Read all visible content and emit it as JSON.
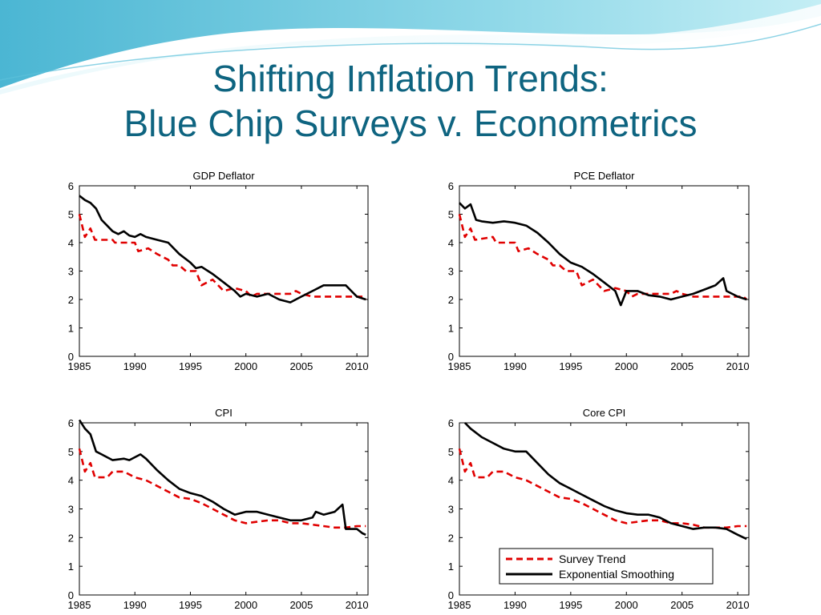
{
  "slide": {
    "title_line1": "Shifting Inflation Trends:",
    "title_line2": "Blue Chip Surveys v. Econometrics",
    "title_color": "#0e6480"
  },
  "legend": {
    "survey_label": "Survey Trend",
    "smoothing_label": "Exponential Smoothing",
    "survey_color": "#e00000",
    "smoothing_color": "#000000"
  },
  "chart_data": [
    {
      "type": "line",
      "title": "GDP Deflator",
      "xlim": [
        1985,
        2011
      ],
      "ylim": [
        0,
        6
      ],
      "xticks": [
        1985,
        1990,
        1995,
        2000,
        2005,
        2010
      ],
      "yticks": [
        0,
        1,
        2,
        3,
        4,
        5,
        6
      ],
      "series": [
        {
          "name": "Survey Trend",
          "style": "dashed",
          "color": "#e00000",
          "points": [
            [
              1985,
              5.0
            ],
            [
              1985.5,
              4.2
            ],
            [
              1986,
              4.5
            ],
            [
              1986.4,
              4.1
            ],
            [
              1988,
              4.1
            ],
            [
              1988.2,
              4.0
            ],
            [
              1990,
              4.0
            ],
            [
              1990.3,
              3.7
            ],
            [
              1991.2,
              3.8
            ],
            [
              1992,
              3.6
            ],
            [
              1993,
              3.4
            ],
            [
              1993.4,
              3.2
            ],
            [
              1994,
              3.2
            ],
            [
              1994.6,
              3.0
            ],
            [
              1995.5,
              3.0
            ],
            [
              1996,
              2.5
            ],
            [
              1997,
              2.7
            ],
            [
              1998,
              2.3
            ],
            [
              1999,
              2.4
            ],
            [
              2000,
              2.3
            ],
            [
              2000.5,
              2.1
            ],
            [
              2001,
              2.2
            ],
            [
              2004,
              2.2
            ],
            [
              2004.5,
              2.3
            ],
            [
              2005,
              2.2
            ],
            [
              2006,
              2.1
            ],
            [
              2010.5,
              2.1
            ],
            [
              2010.8,
              2.0
            ]
          ]
        },
        {
          "name": "Exponential Smoothing",
          "style": "solid",
          "color": "#000000",
          "points": [
            [
              1985,
              5.65
            ],
            [
              1985.5,
              5.5
            ],
            [
              1986,
              5.4
            ],
            [
              1986.5,
              5.2
            ],
            [
              1987,
              4.8
            ],
            [
              1987.5,
              4.6
            ],
            [
              1988,
              4.4
            ],
            [
              1988.5,
              4.3
            ],
            [
              1989,
              4.4
            ],
            [
              1989.5,
              4.25
            ],
            [
              1990,
              4.2
            ],
            [
              1990.5,
              4.3
            ],
            [
              1991,
              4.2
            ],
            [
              1992,
              4.1
            ],
            [
              1992.5,
              4.05
            ],
            [
              1993,
              4.0
            ],
            [
              1994,
              3.6
            ],
            [
              1995,
              3.3
            ],
            [
              1995.5,
              3.1
            ],
            [
              1996,
              3.15
            ],
            [
              1997,
              2.9
            ],
            [
              1998,
              2.6
            ],
            [
              1999,
              2.3
            ],
            [
              1999.5,
              2.1
            ],
            [
              2000,
              2.2
            ],
            [
              2001,
              2.1
            ],
            [
              2002,
              2.2
            ],
            [
              2003,
              2.0
            ],
            [
              2004,
              1.9
            ],
            [
              2005,
              2.1
            ],
            [
              2006,
              2.3
            ],
            [
              2007,
              2.5
            ],
            [
              2008,
              2.5
            ],
            [
              2009,
              2.5
            ],
            [
              2009.5,
              2.3
            ],
            [
              2010,
              2.1
            ],
            [
              2010.8,
              2.0
            ]
          ]
        }
      ]
    },
    {
      "type": "line",
      "title": "PCE Deflator",
      "xlim": [
        1985,
        2011
      ],
      "ylim": [
        0,
        6
      ],
      "xticks": [
        1985,
        1990,
        1995,
        2000,
        2005,
        2010
      ],
      "yticks": [
        0,
        1,
        2,
        3,
        4,
        5,
        6
      ],
      "series": [
        {
          "name": "Survey Trend",
          "style": "dashed",
          "color": "#e00000",
          "points": [
            [
              1985,
              5.0
            ],
            [
              1985.5,
              4.2
            ],
            [
              1986,
              4.5
            ],
            [
              1986.4,
              4.1
            ],
            [
              1988,
              4.2
            ],
            [
              1988.3,
              4.0
            ],
            [
              1990,
              4.0
            ],
            [
              1990.3,
              3.7
            ],
            [
              1991.2,
              3.8
            ],
            [
              1992,
              3.6
            ],
            [
              1993,
              3.4
            ],
            [
              1993.4,
              3.2
            ],
            [
              1994,
              3.2
            ],
            [
              1994.6,
              3.0
            ],
            [
              1995.5,
              3.0
            ],
            [
              1996,
              2.5
            ],
            [
              1997,
              2.7
            ],
            [
              1998,
              2.3
            ],
            [
              1999,
              2.4
            ],
            [
              2000,
              2.3
            ],
            [
              2000.5,
              2.1
            ],
            [
              2001,
              2.2
            ],
            [
              2004,
              2.2
            ],
            [
              2004.5,
              2.3
            ],
            [
              2005,
              2.2
            ],
            [
              2006,
              2.1
            ],
            [
              2010.5,
              2.1
            ],
            [
              2010.8,
              2.0
            ]
          ]
        },
        {
          "name": "Exponential Smoothing",
          "style": "solid",
          "color": "#000000",
          "points": [
            [
              1985,
              5.4
            ],
            [
              1985.5,
              5.2
            ],
            [
              1986,
              5.35
            ],
            [
              1986.5,
              4.8
            ],
            [
              1987,
              4.75
            ],
            [
              1988,
              4.7
            ],
            [
              1989,
              4.75
            ],
            [
              1990,
              4.7
            ],
            [
              1991,
              4.6
            ],
            [
              1992,
              4.35
            ],
            [
              1993,
              4.0
            ],
            [
              1994,
              3.6
            ],
            [
              1995,
              3.3
            ],
            [
              1996,
              3.15
            ],
            [
              1997,
              2.9
            ],
            [
              1998,
              2.6
            ],
            [
              1999,
              2.3
            ],
            [
              1999.5,
              1.8
            ],
            [
              2000,
              2.3
            ],
            [
              2001,
              2.3
            ],
            [
              2002,
              2.15
            ],
            [
              2003,
              2.1
            ],
            [
              2004,
              2.0
            ],
            [
              2005,
              2.1
            ],
            [
              2006,
              2.2
            ],
            [
              2007,
              2.35
            ],
            [
              2008,
              2.5
            ],
            [
              2008.7,
              2.75
            ],
            [
              2009,
              2.3
            ],
            [
              2010,
              2.1
            ],
            [
              2010.8,
              2.0
            ]
          ]
        }
      ]
    },
    {
      "type": "line",
      "title": "CPI",
      "xlim": [
        1985,
        2011
      ],
      "ylim": [
        0,
        6
      ],
      "xticks": [
        1985,
        1990,
        1995,
        2000,
        2005,
        2010
      ],
      "yticks": [
        0,
        1,
        2,
        3,
        4,
        5,
        6
      ],
      "series": [
        {
          "name": "Survey Trend",
          "style": "dashed",
          "color": "#e00000",
          "points": [
            [
              1985,
              5.1
            ],
            [
              1985.5,
              4.3
            ],
            [
              1986,
              4.6
            ],
            [
              1986.4,
              4.1
            ],
            [
              1987.5,
              4.1
            ],
            [
              1988,
              4.3
            ],
            [
              1989,
              4.3
            ],
            [
              1990,
              4.1
            ],
            [
              1991,
              4.0
            ],
            [
              1992,
              3.8
            ],
            [
              1993,
              3.6
            ],
            [
              1994,
              3.4
            ],
            [
              1995,
              3.35
            ],
            [
              1996,
              3.2
            ],
            [
              1997,
              3.0
            ],
            [
              1998,
              2.8
            ],
            [
              1999,
              2.6
            ],
            [
              2000,
              2.5
            ],
            [
              2001,
              2.55
            ],
            [
              2002,
              2.6
            ],
            [
              2003,
              2.6
            ],
            [
              2004,
              2.5
            ],
            [
              2005,
              2.5
            ],
            [
              2006,
              2.45
            ],
            [
              2007,
              2.4
            ],
            [
              2008,
              2.35
            ],
            [
              2009,
              2.35
            ],
            [
              2010,
              2.4
            ],
            [
              2010.8,
              2.4
            ]
          ]
        },
        {
          "name": "Exponential Smoothing",
          "style": "solid",
          "color": "#000000",
          "points": [
            [
              1985,
              6.1
            ],
            [
              1985.5,
              5.8
            ],
            [
              1986,
              5.6
            ],
            [
              1986.5,
              5.0
            ],
            [
              1987,
              4.9
            ],
            [
              1988,
              4.7
            ],
            [
              1989,
              4.75
            ],
            [
              1989.5,
              4.7
            ],
            [
              1990,
              4.8
            ],
            [
              1990.5,
              4.9
            ],
            [
              1991,
              4.75
            ],
            [
              1992,
              4.35
            ],
            [
              1993,
              4.0
            ],
            [
              1994,
              3.7
            ],
            [
              1995,
              3.55
            ],
            [
              1996,
              3.45
            ],
            [
              1997,
              3.25
            ],
            [
              1998,
              3.0
            ],
            [
              1999,
              2.8
            ],
            [
              2000,
              2.9
            ],
            [
              2001,
              2.9
            ],
            [
              2002,
              2.8
            ],
            [
              2003,
              2.7
            ],
            [
              2004,
              2.6
            ],
            [
              2005,
              2.6
            ],
            [
              2006,
              2.7
            ],
            [
              2006.3,
              2.9
            ],
            [
              2007,
              2.8
            ],
            [
              2008,
              2.9
            ],
            [
              2008.7,
              3.15
            ],
            [
              2009,
              2.3
            ],
            [
              2010,
              2.3
            ],
            [
              2010.5,
              2.15
            ],
            [
              2010.8,
              2.1
            ]
          ]
        }
      ]
    },
    {
      "type": "line",
      "title": "Core CPI",
      "xlim": [
        1985,
        2011
      ],
      "ylim": [
        0,
        6
      ],
      "xticks": [
        1985,
        1990,
        1995,
        2000,
        2005,
        2010
      ],
      "yticks": [
        0,
        1,
        2,
        3,
        4,
        5,
        6
      ],
      "series": [
        {
          "name": "Survey Trend",
          "style": "dashed",
          "color": "#e00000",
          "points": [
            [
              1985,
              5.1
            ],
            [
              1985.5,
              4.3
            ],
            [
              1986,
              4.6
            ],
            [
              1986.4,
              4.1
            ],
            [
              1987.5,
              4.1
            ],
            [
              1988,
              4.3
            ],
            [
              1989,
              4.3
            ],
            [
              1990,
              4.1
            ],
            [
              1991,
              4.0
            ],
            [
              1992,
              3.8
            ],
            [
              1993,
              3.6
            ],
            [
              1994,
              3.4
            ],
            [
              1995,
              3.35
            ],
            [
              1996,
              3.2
            ],
            [
              1997,
              3.0
            ],
            [
              1998,
              2.8
            ],
            [
              1999,
              2.6
            ],
            [
              2000,
              2.5
            ],
            [
              2001,
              2.55
            ],
            [
              2002,
              2.6
            ],
            [
              2003,
              2.6
            ],
            [
              2004,
              2.5
            ],
            [
              2005,
              2.5
            ],
            [
              2006,
              2.45
            ],
            [
              2007,
              2.35
            ],
            [
              2008,
              2.35
            ],
            [
              2009,
              2.35
            ],
            [
              2010,
              2.4
            ],
            [
              2010.8,
              2.4
            ]
          ]
        },
        {
          "name": "Exponential Smoothing",
          "style": "solid",
          "color": "#000000",
          "points": [
            [
              1985.5,
              6.0
            ],
            [
              1986,
              5.8
            ],
            [
              1987,
              5.5
            ],
            [
              1988,
              5.3
            ],
            [
              1989,
              5.1
            ],
            [
              1990,
              5.0
            ],
            [
              1991,
              5.0
            ],
            [
              1992,
              4.6
            ],
            [
              1993,
              4.2
            ],
            [
              1994,
              3.9
            ],
            [
              1995,
              3.7
            ],
            [
              1996,
              3.5
            ],
            [
              1997,
              3.3
            ],
            [
              1998,
              3.1
            ],
            [
              1999,
              2.95
            ],
            [
              2000,
              2.85
            ],
            [
              2001,
              2.8
            ],
            [
              2002,
              2.8
            ],
            [
              2003,
              2.7
            ],
            [
              2004,
              2.5
            ],
            [
              2005,
              2.4
            ],
            [
              2006,
              2.3
            ],
            [
              2007,
              2.35
            ],
            [
              2008,
              2.35
            ],
            [
              2009,
              2.3
            ],
            [
              2010,
              2.1
            ],
            [
              2010.8,
              1.95
            ]
          ]
        }
      ]
    }
  ]
}
